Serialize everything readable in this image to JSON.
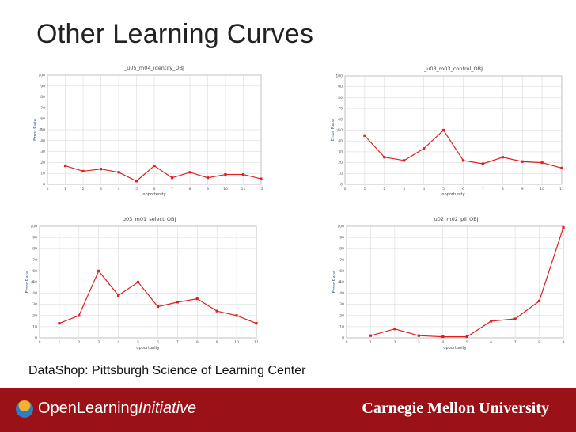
{
  "slide": {
    "title": "Other Learning Curves",
    "footer_text": "DataShop:  Pittsburgh Science of Learning Center"
  },
  "brand": {
    "oli_prefix": "OpenLearning",
    "oli_suffix": "Initiative",
    "cmu": "Carnegie Mellon University"
  },
  "colors": {
    "series": "#e01f1f",
    "footer_bar": "#9a1117",
    "grid": "#d4d4d4"
  },
  "chart_data": [
    {
      "type": "line",
      "title": "_u05_m04_identify_OBJ",
      "xlabel": "opportunity",
      "ylabel": "Error Rate",
      "ylabel2": "%",
      "xlim": [
        0,
        12
      ],
      "ylim": [
        0,
        100
      ],
      "xticks": [
        0,
        1,
        2,
        3,
        4,
        5,
        6,
        7,
        8,
        9,
        10,
        11,
        12
      ],
      "yticks": [
        0,
        10,
        20,
        30,
        40,
        50,
        60,
        70,
        80,
        90,
        100
      ],
      "grid": true,
      "x": [
        1,
        2,
        3,
        4,
        5,
        6,
        7,
        8,
        9,
        10,
        11,
        12
      ],
      "series": [
        {
          "values": [
            17,
            12,
            14,
            11,
            3,
            17,
            6,
            11,
            6,
            9,
            9,
            5
          ]
        }
      ]
    },
    {
      "type": "line",
      "title": "_u03_m03_control_OBJ",
      "xlabel": "opportunity",
      "ylabel": "Error Rate",
      "ylabel2": "%",
      "xlim": [
        0,
        11
      ],
      "ylim": [
        0,
        100
      ],
      "xticks": [
        0,
        1,
        2,
        3,
        4,
        5,
        6,
        7,
        8,
        9,
        10,
        11
      ],
      "yticks": [
        0,
        10,
        20,
        30,
        40,
        50,
        60,
        70,
        80,
        90,
        100
      ],
      "grid": true,
      "x": [
        1,
        2,
        3,
        4,
        5,
        6,
        7,
        8,
        9,
        10,
        11
      ],
      "series": [
        {
          "values": [
            45,
            25,
            22,
            33,
            50,
            22,
            19,
            25,
            21,
            20,
            15
          ]
        }
      ]
    },
    {
      "type": "line",
      "title": "_u03_m01_select_OBJ",
      "xlabel": "opportunity",
      "ylabel": "Error Rate",
      "ylabel2": "%",
      "xlim": [
        0,
        11
      ],
      "ylim": [
        0,
        100
      ],
      "xticks": [
        0,
        1,
        2,
        3,
        4,
        5,
        6,
        7,
        8,
        9,
        10,
        11
      ],
      "yticks": [
        0,
        10,
        20,
        30,
        40,
        50,
        60,
        70,
        80,
        90,
        100
      ],
      "grid": true,
      "x": [
        1,
        2,
        3,
        4,
        5,
        6,
        7,
        8,
        9,
        10,
        11
      ],
      "series": [
        {
          "values": [
            13,
            20,
            60,
            38,
            50,
            28,
            32,
            35,
            24,
            20,
            13
          ]
        }
      ]
    },
    {
      "type": "line",
      "title": "_u02_m02_pii_OBJ",
      "xlabel": "opportunity",
      "ylabel": "Error Rate",
      "ylabel2": "%",
      "xlim": [
        0,
        9
      ],
      "ylim": [
        0,
        100
      ],
      "xticks": [
        0,
        1,
        2,
        3,
        4,
        5,
        6,
        7,
        8,
        9
      ],
      "yticks": [
        0,
        10,
        20,
        30,
        40,
        50,
        60,
        70,
        80,
        90,
        100
      ],
      "grid": true,
      "x": [
        1,
        2,
        3,
        4,
        5,
        6,
        7,
        8,
        9
      ],
      "series": [
        {
          "values": [
            2,
            8,
            2,
            1,
            1,
            15,
            17,
            33,
            99
          ]
        }
      ]
    }
  ]
}
